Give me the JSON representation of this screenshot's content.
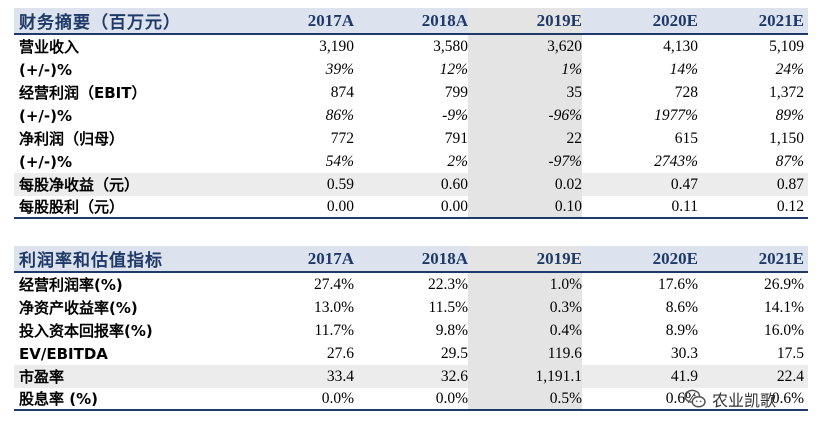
{
  "table1": {
    "title": "财务摘要（百万元）",
    "years": [
      "2017A",
      "2018A",
      "2019E",
      "2020E",
      "2021E"
    ],
    "rows": [
      {
        "label": "营业收入",
        "values": [
          "3,190",
          "3,580",
          "3,620",
          "4,130",
          "5,109"
        ]
      },
      {
        "label": "(+/-)%",
        "values": [
          "39%",
          "12%",
          "1%",
          "14%",
          "24%"
        ]
      },
      {
        "label": "经营利润（EBIT）",
        "values": [
          "874",
          "799",
          "35",
          "728",
          "1,372"
        ]
      },
      {
        "label": "(+/-)%",
        "values": [
          "86%",
          "-9%",
          "-96%",
          "1977%",
          "89%"
        ]
      },
      {
        "label": "净利润（归母）",
        "values": [
          "772",
          "791",
          "22",
          "615",
          "1,150"
        ]
      },
      {
        "label": "(+/-)%",
        "values": [
          "54%",
          "2%",
          "-97%",
          "2743%",
          "87%"
        ]
      },
      {
        "label": "每股净收益（元）",
        "values": [
          "0.59",
          "0.60",
          "0.02",
          "0.47",
          "0.87"
        ]
      },
      {
        "label": "每股股利（元）",
        "values": [
          "0.00",
          "0.00",
          "0.10",
          "0.11",
          "0.12"
        ]
      }
    ]
  },
  "table2": {
    "title": "利润率和估值指标",
    "years": [
      "2017A",
      "2018A",
      "2019E",
      "2020E",
      "2021E"
    ],
    "rows": [
      {
        "label": "经营利润率(%)",
        "values": [
          "27.4%",
          "22.3%",
          "1.0%",
          "17.6%",
          "26.9%"
        ]
      },
      {
        "label": "净资产收益率(%)",
        "values": [
          "13.0%",
          "11.5%",
          "0.3%",
          "8.6%",
          "14.1%"
        ]
      },
      {
        "label": "投入资本回报率(%)",
        "values": [
          "11.7%",
          "9.8%",
          "0.4%",
          "8.9%",
          "16.0%"
        ]
      },
      {
        "label": "EV/EBITDA",
        "values": [
          "27.6",
          "29.5",
          "119.6",
          "30.3",
          "17.5"
        ]
      },
      {
        "label": "市盈率",
        "values": [
          "33.4",
          "32.6",
          "1,191.1",
          "41.9",
          "22.4"
        ]
      },
      {
        "label": "股息率 (%)",
        "values": [
          "0.0%",
          "0.0%",
          "0.5%",
          "0.6%",
          "0.6%"
        ]
      }
    ]
  },
  "watermark": {
    "text": "农业凯歌",
    "icon": "wechat-icon"
  },
  "colors": {
    "header_bg": "#dce3ee",
    "header_text": "#1f3a68",
    "rule": "#1f3a68",
    "highlight": "#e4e4e4",
    "shade": "#ececec"
  }
}
